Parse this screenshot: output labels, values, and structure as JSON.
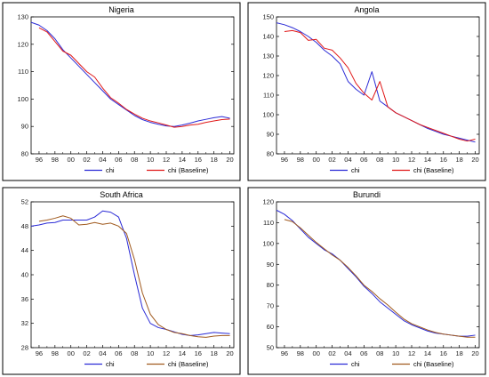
{
  "chart_data": [
    {
      "type": "line",
      "title": "Nigeria",
      "ylim": [
        80,
        130
      ],
      "yticks": [
        80,
        90,
        100,
        110,
        120,
        130
      ],
      "xlim": [
        1995,
        2020.5
      ],
      "xticks": [
        1996,
        1998,
        2000,
        2002,
        2004,
        2006,
        2008,
        2010,
        2012,
        2014,
        2016,
        2018,
        2020
      ],
      "xticklabels": [
        "96",
        "98",
        "00",
        "02",
        "04",
        "06",
        "08",
        "10",
        "12",
        "14",
        "16",
        "18",
        "20"
      ],
      "legend": "bottom-left",
      "series": [
        {
          "name": "chi",
          "color": "#2b2bd6",
          "x": [
            1995,
            1996,
            1997,
            1998,
            1999,
            2000,
            2001,
            2002,
            2003,
            2004,
            2005,
            2006,
            2007,
            2008,
            2009,
            2010,
            2011,
            2012,
            2013,
            2014,
            2015,
            2016,
            2017,
            2018,
            2019,
            2020
          ],
          "y": [
            128,
            127,
            125,
            122,
            118,
            115,
            112,
            109,
            106,
            103,
            100,
            98,
            96,
            94,
            92.5,
            91.5,
            90.8,
            90.2,
            90,
            90.5,
            91.2,
            92,
            92.6,
            93.2,
            93.6,
            93
          ]
        },
        {
          "name": "chi (Baseline)",
          "color": "#e01818",
          "x": [
            1996,
            1997,
            1998,
            1999,
            2000,
            2001,
            2002,
            2003,
            2004,
            2005,
            2006,
            2007,
            2008,
            2009,
            2010,
            2011,
            2012,
            2013,
            2014,
            2015,
            2016,
            2017,
            2018,
            2019,
            2020
          ],
          "y": [
            126,
            124.5,
            121,
            117.5,
            116,
            113,
            110,
            108,
            104,
            100.5,
            98.5,
            96.2,
            94.5,
            93,
            92,
            91.3,
            90.5,
            89.7,
            90,
            90.5,
            90.8,
            91.5,
            92,
            92.5,
            92.7
          ]
        }
      ]
    },
    {
      "type": "line",
      "title": "Angola",
      "ylim": [
        80,
        150
      ],
      "yticks": [
        80,
        90,
        100,
        110,
        120,
        130,
        140,
        150
      ],
      "xlim": [
        1995,
        2020.5
      ],
      "xticks": [
        1996,
        1998,
        2000,
        2002,
        2004,
        2006,
        2008,
        2010,
        2012,
        2014,
        2016,
        2018,
        2020
      ],
      "xticklabels": [
        "96",
        "98",
        "00",
        "02",
        "04",
        "06",
        "08",
        "10",
        "12",
        "14",
        "16",
        "18",
        "20"
      ],
      "legend": "bottom-left",
      "series": [
        {
          "name": "chi",
          "color": "#2b2bd6",
          "x": [
            1995,
            1996,
            1997,
            1998,
            1999,
            2000,
            2001,
            2002,
            2003,
            2004,
            2005,
            2006,
            2007,
            2008,
            2009,
            2010,
            2011,
            2012,
            2013,
            2014,
            2015,
            2016,
            2017,
            2018,
            2019,
            2020
          ],
          "y": [
            147,
            146,
            144.5,
            142.5,
            140,
            137,
            133,
            130,
            126,
            117,
            113,
            110,
            122,
            107,
            104,
            101,
            99,
            97,
            95,
            93,
            91.5,
            90,
            89,
            88,
            87,
            86
          ]
        },
        {
          "name": "chi (Baseline)",
          "color": "#e01818",
          "x": [
            1996,
            1997,
            1998,
            1999,
            2000,
            2001,
            2002,
            2003,
            2004,
            2005,
            2006,
            2007,
            2008,
            2009,
            2010,
            2011,
            2012,
            2013,
            2014,
            2015,
            2016,
            2017,
            2018,
            2019,
            2020
          ],
          "y": [
            142.5,
            143,
            142,
            138,
            138.5,
            134,
            133,
            129,
            124,
            116,
            111,
            107.5,
            117,
            104,
            101,
            99,
            97,
            95,
            93.5,
            92,
            90.5,
            89,
            87.5,
            86.5,
            87.5
          ]
        }
      ]
    },
    {
      "type": "line",
      "title": "South Africa",
      "ylim": [
        28,
        52
      ],
      "yticks": [
        28,
        32,
        36,
        40,
        44,
        48,
        52
      ],
      "xlim": [
        1995,
        2020.5
      ],
      "xticks": [
        1996,
        1998,
        2000,
        2002,
        2004,
        2006,
        2008,
        2010,
        2012,
        2014,
        2016,
        2018,
        2020
      ],
      "xticklabels": [
        "96",
        "98",
        "00",
        "02",
        "04",
        "06",
        "08",
        "10",
        "12",
        "14",
        "16",
        "18",
        "20"
      ],
      "legend": "bottom-left",
      "series": [
        {
          "name": "chi",
          "color": "#2b2bd6",
          "x": [
            1995,
            1996,
            1997,
            1998,
            1999,
            2000,
            2001,
            2002,
            2003,
            2004,
            2005,
            2006,
            2007,
            2008,
            2009,
            2010,
            2011,
            2012,
            2013,
            2014,
            2015,
            2016,
            2017,
            2018,
            2019,
            2020
          ],
          "y": [
            48,
            48.2,
            48.5,
            48.6,
            49,
            49,
            49,
            49,
            49.5,
            50.5,
            50.3,
            49.5,
            46,
            40,
            34.5,
            32,
            31.3,
            31,
            30.6,
            30.2,
            30,
            30.1,
            30.3,
            30.5,
            30.4,
            30.3
          ]
        },
        {
          "name": "chi (Baseline)",
          "color": "#a05a1e",
          "x": [
            1996,
            1997,
            1998,
            1999,
            2000,
            2001,
            2002,
            2003,
            2004,
            2005,
            2006,
            2007,
            2008,
            2009,
            2010,
            2011,
            2012,
            2013,
            2014,
            2015,
            2016,
            2017,
            2018,
            2019,
            2020
          ],
          "y": [
            48.8,
            49,
            49.3,
            49.7,
            49.3,
            48.2,
            48.3,
            48.6,
            48.3,
            48.5,
            48,
            46.8,
            42.5,
            37,
            33.5,
            31.8,
            31,
            30.5,
            30.3,
            30,
            29.8,
            29.7,
            29.9,
            30,
            30
          ]
        }
      ]
    },
    {
      "type": "line",
      "title": "Burundi",
      "ylim": [
        50,
        120
      ],
      "yticks": [
        50,
        60,
        70,
        80,
        90,
        100,
        110,
        120
      ],
      "xlim": [
        1995,
        2020.5
      ],
      "xticks": [
        1996,
        1998,
        2000,
        2002,
        2004,
        2006,
        2008,
        2010,
        2012,
        2014,
        2016,
        2018,
        2020
      ],
      "xticklabels": [
        "96",
        "98",
        "00",
        "02",
        "04",
        "06",
        "08",
        "10",
        "12",
        "14",
        "16",
        "18",
        "20"
      ],
      "legend": "bottom-left",
      "series": [
        {
          "name": "chi",
          "color": "#2b2bd6",
          "x": [
            1995,
            1996,
            1997,
            1998,
            1999,
            2000,
            2001,
            2002,
            2003,
            2004,
            2005,
            2006,
            2007,
            2008,
            2009,
            2010,
            2011,
            2012,
            2013,
            2014,
            2015,
            2016,
            2017,
            2018,
            2019,
            2020
          ],
          "y": [
            116,
            114,
            111,
            107,
            103,
            100,
            97,
            95,
            92,
            88,
            84,
            79.5,
            76,
            72,
            69,
            66,
            63,
            61,
            59.5,
            58,
            57,
            56.5,
            56,
            55.5,
            55.5,
            56
          ]
        },
        {
          "name": "chi (Baseline)",
          "color": "#a05a1e",
          "x": [
            1996,
            1997,
            1998,
            1999,
            2000,
            2001,
            2002,
            2003,
            2004,
            2005,
            2006,
            2007,
            2008,
            2009,
            2010,
            2011,
            2012,
            2013,
            2014,
            2015,
            2016,
            2017,
            2018,
            2019,
            2020
          ],
          "y": [
            111.5,
            110.5,
            107.5,
            104,
            100.5,
            97.5,
            94.5,
            92,
            88.5,
            84.5,
            80,
            77,
            73.5,
            70.5,
            67,
            63.8,
            61.5,
            60,
            58.5,
            57.3,
            56.5,
            56,
            55.5,
            55,
            55
          ]
        }
      ]
    }
  ]
}
